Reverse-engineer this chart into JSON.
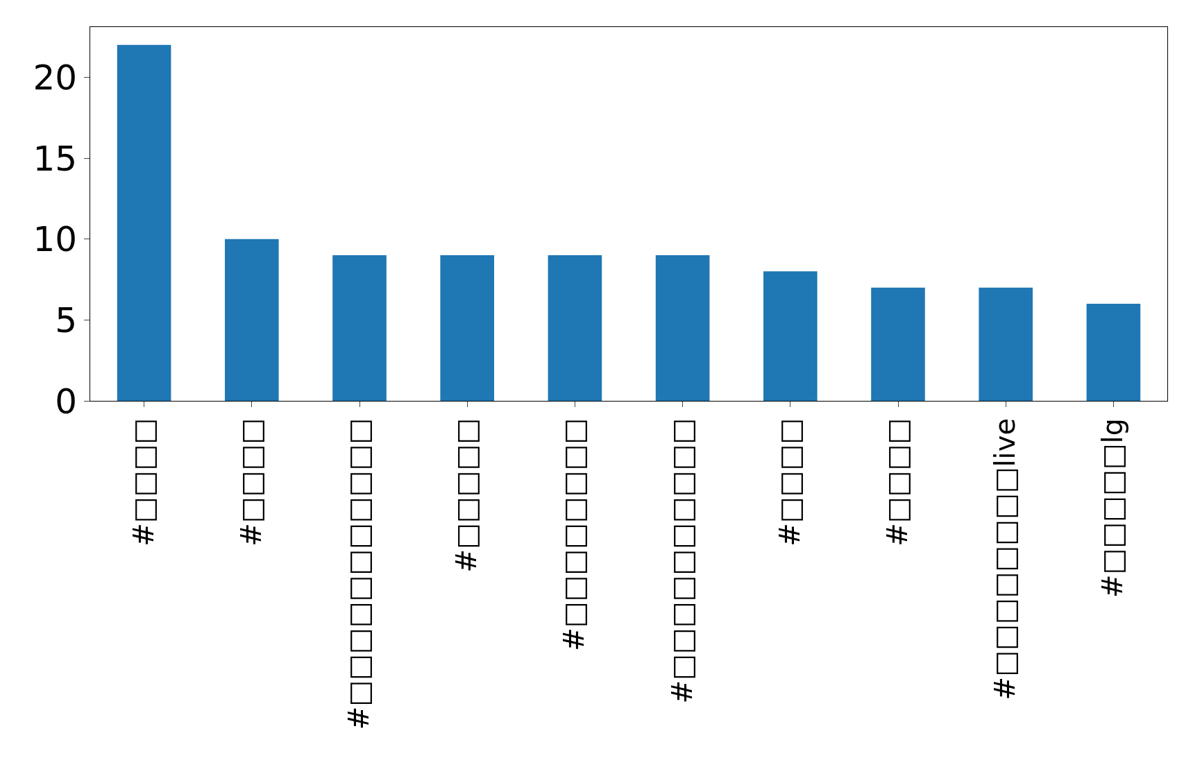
{
  "chart_data": {
    "type": "bar",
    "categories": [
      "#□□□□",
      "#□□□□",
      "#□□□□□□□□□□□",
      "#□□□□□",
      "#□□□□□□□□",
      "#□□□□□□□□□□",
      "#□□□□",
      "#□□□□",
      "#□□□□□□□□live",
      "#□□□□□lg"
    ],
    "values": [
      22,
      10,
      9,
      9,
      9,
      9,
      8,
      7,
      7,
      6
    ],
    "color": "#1f77b4",
    "ylim": [
      0,
      23.1
    ],
    "yticks": [
      0,
      5,
      10,
      15,
      20
    ],
    "grid": false
  }
}
